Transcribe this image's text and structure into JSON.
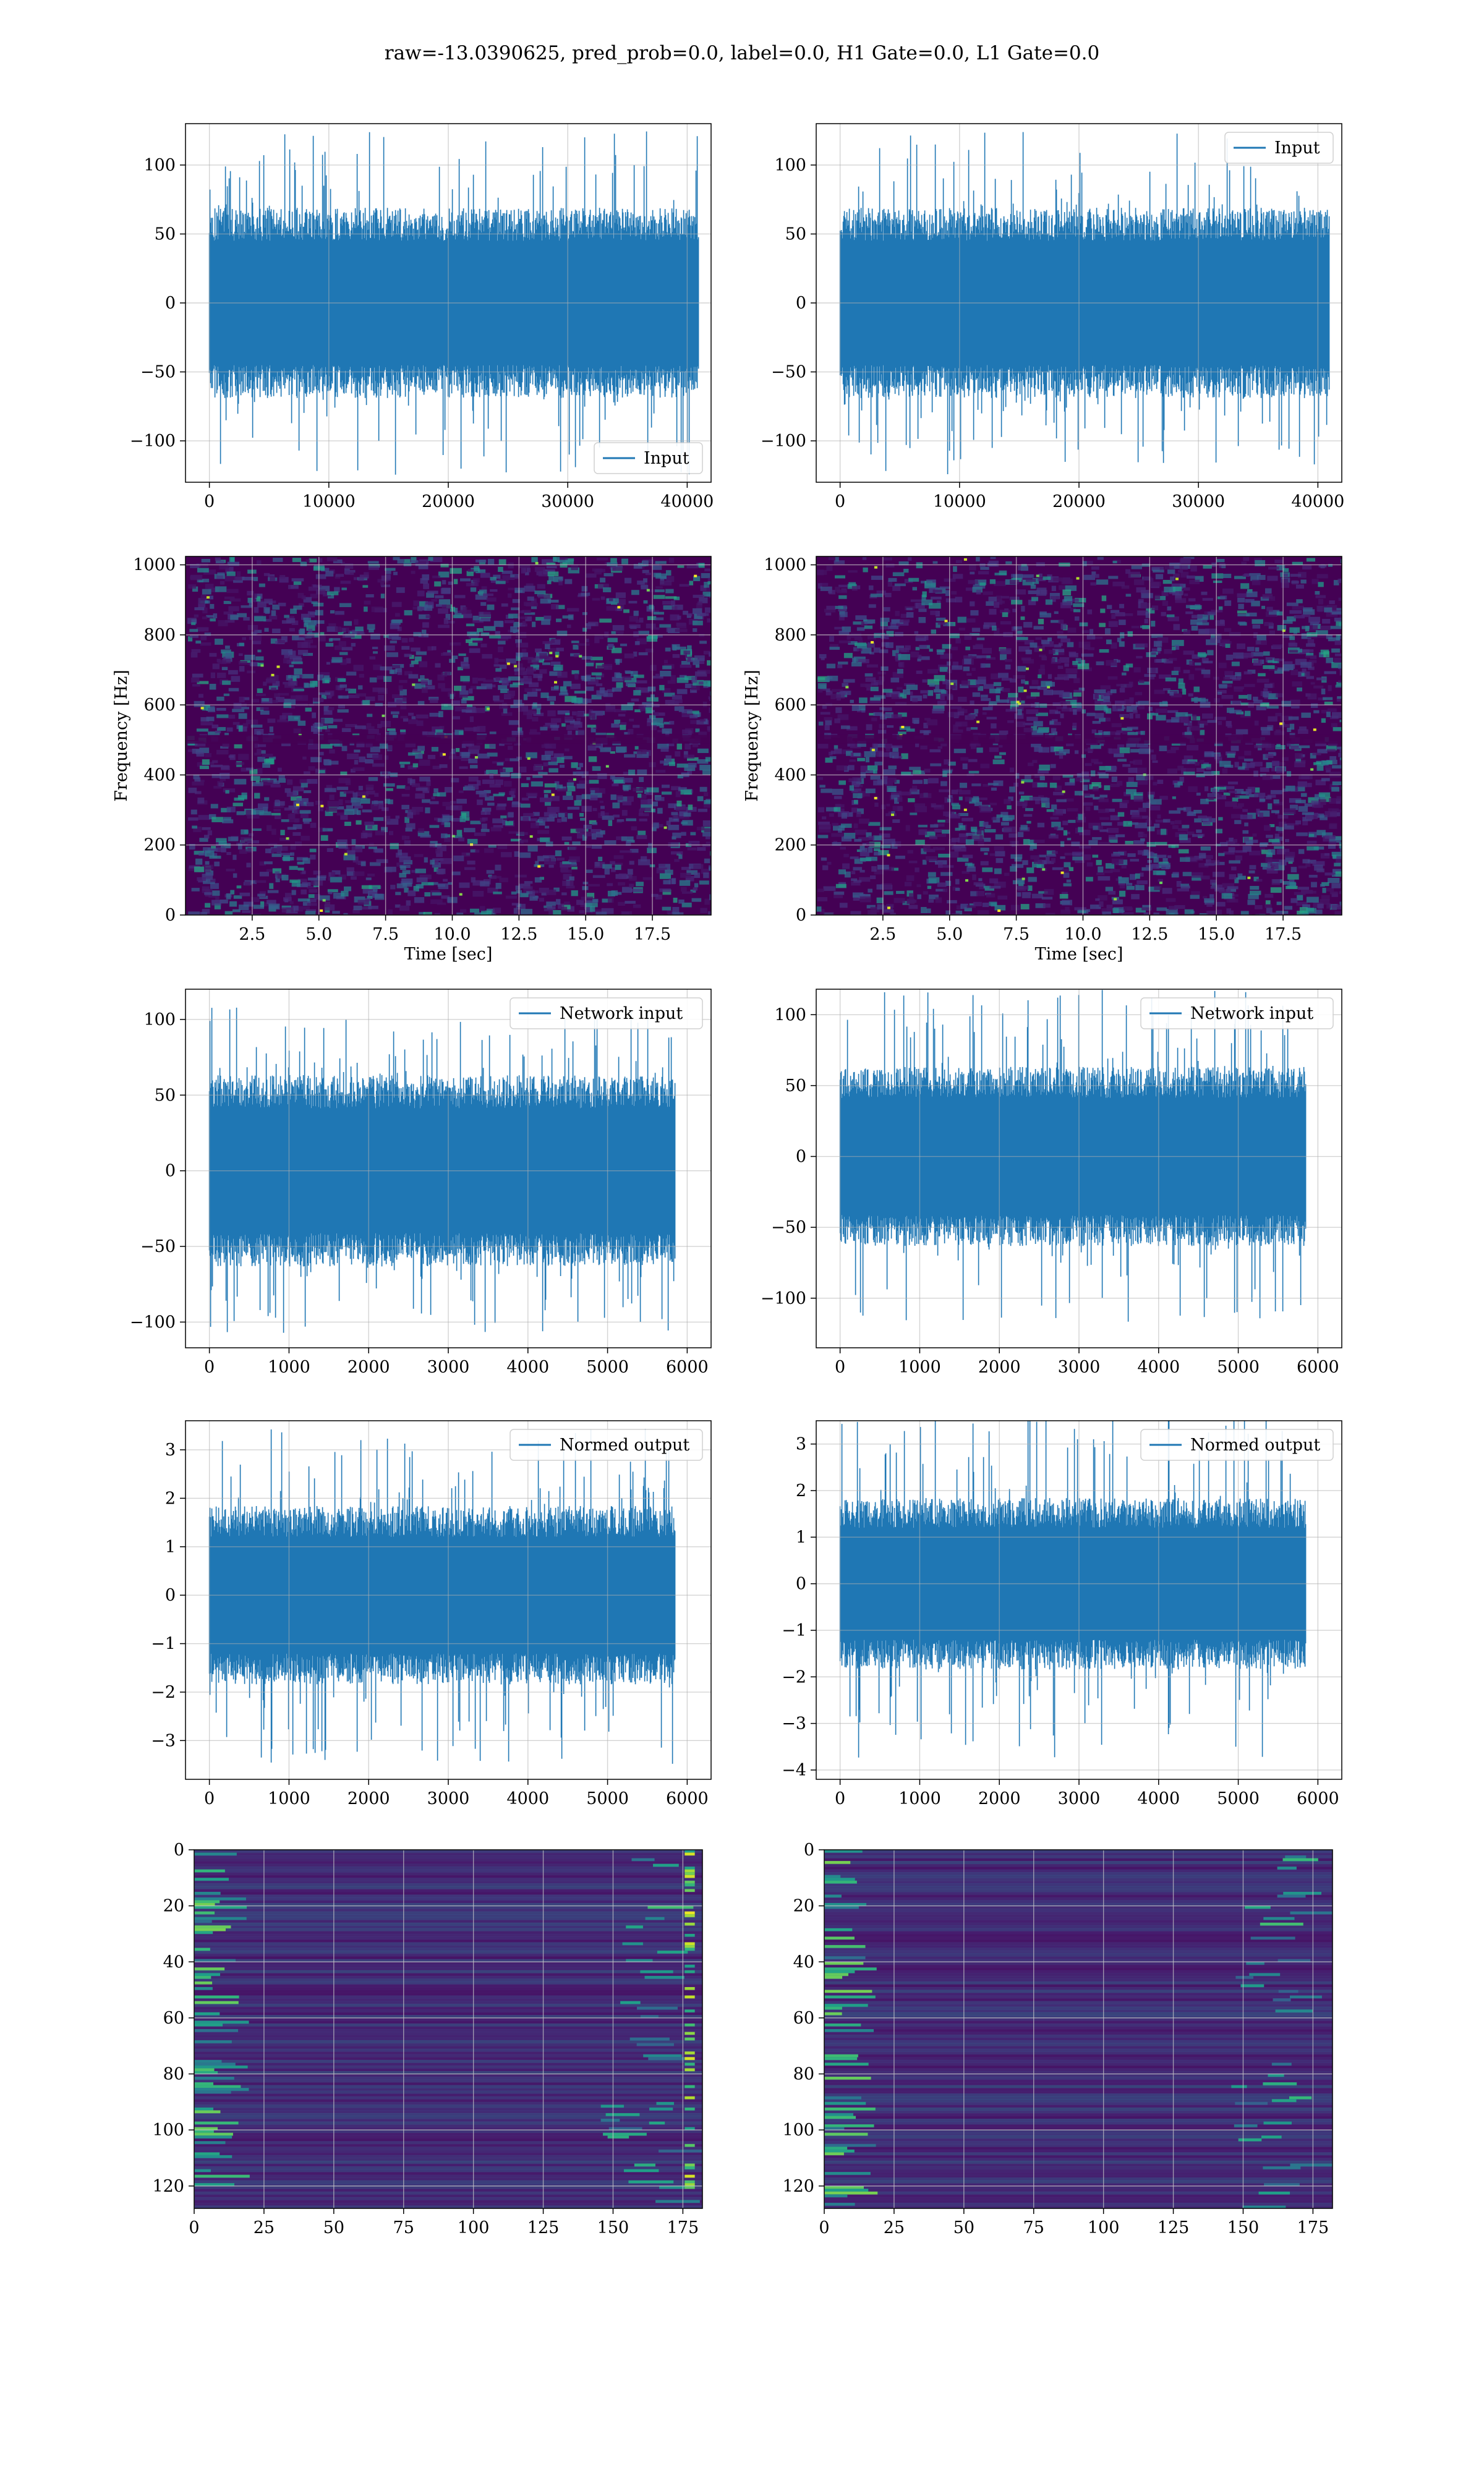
{
  "title": "raw=-13.0390625, pred_prob=0.0, label=0.0, H1 Gate=0.0, L1 Gate=0.0",
  "colors": {
    "line": "#1f77b4",
    "grid": "#b0b0b0",
    "viridis": [
      "#440154",
      "#482878",
      "#3e4989",
      "#31688e",
      "#26828e",
      "#1f9e89",
      "#35b779",
      "#6ece58",
      "#b5de2b",
      "#fde725"
    ]
  },
  "chart_data": [
    {
      "id": "h1-input",
      "type": "line",
      "series": [
        {
          "name": "Input",
          "envelope": "whitened strain noise, spikes to about ±125"
        }
      ],
      "legend": "lower-right",
      "xlim": [
        -2000,
        42000
      ],
      "ylim": [
        -130,
        130
      ],
      "xticks": [
        0,
        10000,
        20000,
        30000,
        40000
      ],
      "xticklabels": [
        "0",
        "10000",
        "20000",
        "30000",
        "40000"
      ],
      "yticks": [
        -100,
        -50,
        0,
        50,
        100
      ],
      "yticklabels": [
        "−100",
        "−50",
        "0",
        "50",
        "100"
      ],
      "x_range": [
        0,
        40960
      ],
      "amplitude": 60,
      "spike": 125,
      "grid": true
    },
    {
      "id": "l1-input",
      "type": "line",
      "series": [
        {
          "name": "Input"
        }
      ],
      "legend": "top-right",
      "xlim": [
        -2000,
        42000
      ],
      "ylim": [
        -130,
        130
      ],
      "xticks": [
        0,
        10000,
        20000,
        30000,
        40000
      ],
      "xticklabels": [
        "0",
        "10000",
        "20000",
        "30000",
        "40000"
      ],
      "yticks": [
        -100,
        -50,
        0,
        50,
        100
      ],
      "yticklabels": [
        "−100",
        "−50",
        "0",
        "50",
        "100"
      ],
      "x_range": [
        0,
        40960
      ],
      "amplitude": 60,
      "spike": 125,
      "grid": true
    },
    {
      "id": "h1-spectrogram",
      "type": "heatmap",
      "xlabel": "Time [sec]",
      "ylabel": "Frequency [Hz]",
      "xlim": [
        0,
        19.7
      ],
      "ylim": [
        0,
        1024
      ],
      "xticks": [
        2.5,
        5,
        7.5,
        10,
        12.5,
        15,
        17.5
      ],
      "xticklabels": [
        "2.5",
        "5.0",
        "7.5",
        "10.0",
        "12.5",
        "15.0",
        "17.5"
      ],
      "yticks": [
        0,
        200,
        400,
        600,
        800,
        1000
      ],
      "yticklabels": [
        "0",
        "200",
        "400",
        "600",
        "800",
        "1000"
      ],
      "dark_band_hz": 500,
      "grid": true
    },
    {
      "id": "l1-spectrogram",
      "type": "heatmap",
      "xlabel": "Time [sec]",
      "ylabel": "Frequency [Hz]",
      "xlim": [
        0,
        19.7
      ],
      "ylim": [
        0,
        1024
      ],
      "xticks": [
        2.5,
        5,
        7.5,
        10,
        12.5,
        15,
        17.5
      ],
      "xticklabels": [
        "2.5",
        "5.0",
        "7.5",
        "10.0",
        "12.5",
        "15.0",
        "17.5"
      ],
      "yticks": [
        0,
        200,
        400,
        600,
        800,
        1000
      ],
      "yticklabels": [
        "0",
        "200",
        "400",
        "600",
        "800",
        "1000"
      ],
      "dark_band_hz": 500,
      "grid": true
    },
    {
      "id": "h1-network-input",
      "type": "line",
      "series": [
        {
          "name": "Network input"
        }
      ],
      "legend": "top-right",
      "xlim": [
        -300,
        6300
      ],
      "ylim": [
        -117,
        120
      ],
      "xticks": [
        0,
        1000,
        2000,
        3000,
        4000,
        5000,
        6000
      ],
      "xticklabels": [
        "0",
        "1000",
        "2000",
        "3000",
        "4000",
        "5000",
        "6000"
      ],
      "yticks": [
        -100,
        -50,
        0,
        50,
        100
      ],
      "yticklabels": [
        "−100",
        "−50",
        "0",
        "50",
        "100"
      ],
      "x_range": [
        0,
        5850
      ],
      "amplitude": 55,
      "spike": 108,
      "grid": true
    },
    {
      "id": "l1-network-input",
      "type": "line",
      "series": [
        {
          "name": "Network input"
        }
      ],
      "legend": "top-right",
      "xlim": [
        -300,
        6300
      ],
      "ylim": [
        -135,
        118
      ],
      "xticks": [
        0,
        1000,
        2000,
        3000,
        4000,
        5000,
        6000
      ],
      "xticklabels": [
        "0",
        "1000",
        "2000",
        "3000",
        "4000",
        "5000",
        "6000"
      ],
      "yticks": [
        -100,
        -50,
        0,
        50,
        100
      ],
      "yticklabels": [
        "−100",
        "−50",
        "0",
        "50",
        "100"
      ],
      "x_range": [
        0,
        5850
      ],
      "amplitude": 55,
      "spike": 118,
      "grid": true
    },
    {
      "id": "h1-normed-output",
      "type": "line",
      "series": [
        {
          "name": "Normed output"
        }
      ],
      "legend": "top-right",
      "xlim": [
        -300,
        6300
      ],
      "ylim": [
        -3.8,
        3.6
      ],
      "xticks": [
        0,
        1000,
        2000,
        3000,
        4000,
        5000,
        6000
      ],
      "xticklabels": [
        "0",
        "1000",
        "2000",
        "3000",
        "4000",
        "5000",
        "6000"
      ],
      "yticks": [
        -3,
        -2,
        -1,
        0,
        1,
        2,
        3
      ],
      "yticklabels": [
        "−3",
        "−2",
        "−1",
        "0",
        "1",
        "2",
        "3"
      ],
      "x_range": [
        0,
        5850
      ],
      "amplitude": 1.6,
      "spike": 3.5,
      "grid": true
    },
    {
      "id": "l1-normed-output",
      "type": "line",
      "series": [
        {
          "name": "Normed output"
        }
      ],
      "legend": "top-right",
      "xlim": [
        -300,
        6300
      ],
      "ylim": [
        -4.2,
        3.5
      ],
      "xticks": [
        0,
        1000,
        2000,
        3000,
        4000,
        5000,
        6000
      ],
      "xticklabels": [
        "0",
        "1000",
        "2000",
        "3000",
        "4000",
        "5000",
        "6000"
      ],
      "yticks": [
        -4,
        -3,
        -2,
        -1,
        0,
        1,
        2,
        3
      ],
      "yticklabels": [
        "−4",
        "−3",
        "−2",
        "−1",
        "0",
        "1",
        "2",
        "3"
      ],
      "x_range": [
        0,
        5850
      ],
      "amplitude": 1.6,
      "spike": 3.8,
      "grid": true
    },
    {
      "id": "h1-feature-map",
      "type": "heatmap",
      "xlim": [
        0,
        182
      ],
      "ylim": [
        128,
        0
      ],
      "xticks": [
        0,
        25,
        50,
        75,
        100,
        125,
        150,
        175
      ],
      "xticklabels": [
        "0",
        "25",
        "50",
        "75",
        "100",
        "125",
        "150",
        "175"
      ],
      "yticks": [
        0,
        20,
        40,
        60,
        80,
        100,
        120
      ],
      "yticklabels": [
        "0",
        "20",
        "40",
        "60",
        "80",
        "100",
        "120"
      ],
      "rows": 128,
      "cols": 182,
      "grid": true
    },
    {
      "id": "l1-feature-map",
      "type": "heatmap",
      "xlim": [
        0,
        182
      ],
      "ylim": [
        128,
        0
      ],
      "xticks": [
        0,
        25,
        50,
        75,
        100,
        125,
        150,
        175
      ],
      "xticklabels": [
        "0",
        "25",
        "50",
        "75",
        "100",
        "125",
        "150",
        "175"
      ],
      "yticks": [
        0,
        20,
        40,
        60,
        80,
        100,
        120
      ],
      "yticklabels": [
        "0",
        "20",
        "40",
        "60",
        "80",
        "100",
        "120"
      ],
      "rows": 128,
      "cols": 182,
      "grid": true
    }
  ]
}
